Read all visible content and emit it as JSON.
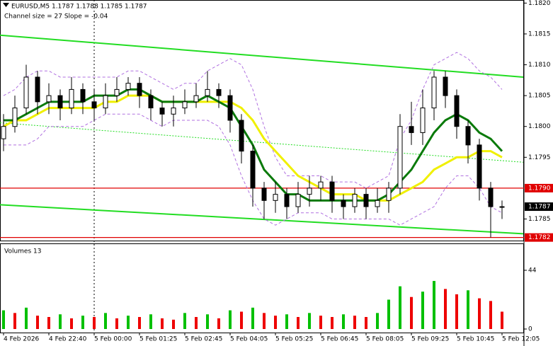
{
  "chart_data": {
    "type": "candlestick",
    "header": "EURUSD,M5  1.1787 1.1788 1.1785 1.1787",
    "subheader": "Channel size = 27 Slope = -0.04",
    "xlim": [
      -0.3125,
      45.875
    ],
    "ylim": [
      1.17815,
      1.18205
    ],
    "yticks": [
      {
        "value": 1.182,
        "label": "1.1820"
      },
      1.1815,
      {
        "value": 1.181,
        "label": "1.1810"
      },
      1.1805,
      {
        "value": 1.18,
        "label": "1.1800"
      },
      1.1795,
      1.1785
    ],
    "xticks": [
      {
        "value": 0,
        "label": "4 Feb 2026"
      },
      {
        "value": 4,
        "label": "4 Feb 22:40"
      },
      {
        "value": 8,
        "label": "5 Feb 00:00"
      },
      {
        "value": 12,
        "label": "5 Feb 01:25"
      },
      {
        "value": 16,
        "label": "5 Feb 02:45"
      },
      {
        "value": 20,
        "label": "5 Feb 04:05"
      },
      {
        "value": 24,
        "label": "5 Feb 05:25"
      },
      {
        "value": 28,
        "label": "5 Feb 06:45"
      },
      {
        "value": 32,
        "label": "5 Feb 08:05"
      },
      {
        "value": 36,
        "label": "5 Feb 09:25"
      },
      {
        "value": 40,
        "label": "5 Feb 10:45"
      },
      {
        "value": 44,
        "label": "5 Feb 12:05"
      }
    ],
    "open": [
      1.1798,
      1.18,
      1.1803,
      1.1808,
      1.1804,
      1.1805,
      1.1803,
      1.1806,
      1.1804,
      1.1803,
      1.1805,
      1.1806,
      1.1807,
      1.1805,
      1.1803,
      1.1802,
      1.1803,
      1.1804,
      1.1805,
      1.1806,
      1.1805,
      1.1801,
      1.1796,
      1.179,
      1.1788,
      1.1789,
      1.1787,
      1.1789,
      1.179,
      1.1791,
      1.1788,
      1.1787,
      1.1789,
      1.1787,
      1.1788,
      1.179,
      1.18,
      1.1799,
      1.1803,
      1.1808,
      1.1805,
      1.18,
      1.1797,
      1.179,
      1.1787
    ],
    "high": [
      1.1802,
      1.1805,
      1.181,
      1.1809,
      1.1807,
      1.1806,
      1.1808,
      1.1807,
      1.1806,
      1.1807,
      1.1808,
      1.1808,
      1.1808,
      1.1806,
      1.1804,
      1.1805,
      1.1806,
      1.1807,
      1.1809,
      1.1807,
      1.1806,
      1.1802,
      1.1797,
      1.1791,
      1.1791,
      1.179,
      1.1791,
      1.1792,
      1.1792,
      1.1792,
      1.1789,
      1.179,
      1.179,
      1.179,
      1.1791,
      1.1802,
      1.1804,
      1.1806,
      1.1809,
      1.1809,
      1.1806,
      1.1801,
      1.1798,
      1.1791,
      1.1788
    ],
    "low": [
      1.1796,
      1.1799,
      1.1802,
      1.1802,
      1.1802,
      1.1801,
      1.1802,
      1.1802,
      1.1801,
      1.1802,
      1.1804,
      1.1805,
      1.1803,
      1.1801,
      1.18,
      1.18,
      1.1802,
      1.1803,
      1.1804,
      1.1803,
      1.1799,
      1.1794,
      1.1787,
      1.1785,
      1.1786,
      1.1785,
      1.1786,
      1.1787,
      1.1788,
      1.1786,
      1.1785,
      1.1786,
      1.1785,
      1.1786,
      1.1786,
      1.1789,
      1.1797,
      1.1797,
      1.1801,
      1.1803,
      1.1798,
      1.1794,
      1.1788,
      1.1782,
      1.1785
    ],
    "close": [
      1.18,
      1.1803,
      1.1808,
      1.1804,
      1.1805,
      1.1803,
      1.1806,
      1.1804,
      1.1803,
      1.1805,
      1.1806,
      1.1807,
      1.1805,
      1.1803,
      1.1802,
      1.1803,
      1.1804,
      1.1805,
      1.1806,
      1.1805,
      1.1801,
      1.1796,
      1.179,
      1.1788,
      1.1789,
      1.1787,
      1.1789,
      1.179,
      1.1791,
      1.1788,
      1.1787,
      1.1789,
      1.1787,
      1.1788,
      1.179,
      1.18,
      1.1799,
      1.1803,
      1.1808,
      1.1805,
      1.18,
      1.1797,
      1.179,
      1.1787,
      1.1787
    ],
    "lines": [
      {
        "color": "#b070e0",
        "dashed": true,
        "values": [
          1.1805,
          1.1806,
          1.1808,
          1.1809,
          1.1809,
          1.1808,
          1.1808,
          1.1808,
          1.1808,
          1.1808,
          1.1808,
          1.1809,
          1.1809,
          1.1808,
          1.1807,
          1.1806,
          1.1807,
          1.1807,
          1.1809,
          1.181,
          1.1811,
          1.181,
          1.1806,
          1.18,
          1.1795,
          1.1792,
          1.1792,
          1.1792,
          1.1792,
          1.1791,
          1.1791,
          1.1791,
          1.179,
          1.1791,
          1.1792,
          1.1798,
          1.1801,
          1.1806,
          1.181,
          1.1811,
          1.1812,
          1.1811,
          1.1809,
          1.1808,
          1.1806
        ]
      },
      {
        "color": "#b070e0",
        "dashed": true,
        "values": [
          1.1797,
          1.1797,
          1.1797,
          1.1798,
          1.18,
          1.18,
          1.18,
          1.18,
          1.1801,
          1.1802,
          1.1802,
          1.1802,
          1.1802,
          1.1801,
          1.18,
          1.1801,
          1.1801,
          1.1801,
          1.1801,
          1.18,
          1.1797,
          1.1792,
          1.1788,
          1.1785,
          1.1784,
          1.1785,
          1.1786,
          1.1786,
          1.1786,
          1.1785,
          1.1785,
          1.1785,
          1.1785,
          1.1785,
          1.1785,
          1.1784,
          1.1785,
          1.1786,
          1.1787,
          1.179,
          1.1792,
          1.1792,
          1.179,
          1.1787,
          1.1786
        ]
      },
      {
        "color": "#f0f000",
        "dashed": false,
        "values": [
          1.18,
          1.1801,
          1.1801,
          1.1802,
          1.1803,
          1.1803,
          1.1803,
          1.1803,
          1.1803,
          1.1804,
          1.1804,
          1.1805,
          1.1805,
          1.1805,
          1.1804,
          1.1804,
          1.1804,
          1.1804,
          1.1804,
          1.1804,
          1.1804,
          1.1803,
          1.1801,
          1.1798,
          1.1796,
          1.1794,
          1.1792,
          1.1791,
          1.179,
          1.1789,
          1.1789,
          1.1789,
          1.1788,
          1.1788,
          1.1788,
          1.1789,
          1.179,
          1.1791,
          1.1793,
          1.1794,
          1.1795,
          1.1795,
          1.1796,
          1.1796,
          1.1795
        ]
      },
      {
        "color": "#0a7a0a",
        "dashed": false,
        "values": [
          1.1801,
          1.1801,
          1.1802,
          1.1803,
          1.1804,
          1.1804,
          1.1804,
          1.1804,
          1.1805,
          1.1805,
          1.1805,
          1.1806,
          1.1806,
          1.1805,
          1.1804,
          1.1804,
          1.1804,
          1.1804,
          1.1805,
          1.1804,
          1.1803,
          1.18,
          1.1797,
          1.1793,
          1.1791,
          1.1789,
          1.1789,
          1.1788,
          1.1788,
          1.1788,
          1.1788,
          1.1788,
          1.1788,
          1.1788,
          1.1789,
          1.1791,
          1.1793,
          1.1796,
          1.1799,
          1.1801,
          1.1802,
          1.1801,
          1.1799,
          1.1798,
          1.1796
        ]
      }
    ],
    "trendlines": [
      {
        "color": "#22dd22",
        "dashed": false,
        "x": [
          -0.3125,
          45.875
        ],
        "values": [
          1.18148,
          1.1808
        ]
      },
      {
        "color": "#22dd22",
        "dashed": true,
        "x": [
          -0.3125,
          45.875
        ],
        "values": [
          1.18006,
          1.17942
        ]
      },
      {
        "color": "#22dd22",
        "dashed": false,
        "x": [
          -0.3125,
          45.875
        ],
        "values": [
          1.17873,
          1.17826
        ]
      }
    ],
    "levels": [
      {
        "value": 1.179,
        "label": "1.1790",
        "color": "#e00000"
      },
      {
        "value": 1.1782,
        "label": "1.1782",
        "color": "#e00000"
      }
    ],
    "last_price": 1.1787,
    "volume": {
      "title": "Volumes 13",
      "ylim": [
        0,
        44
      ],
      "yticks": [
        44,
        0
      ],
      "up_color": "#00c000",
      "down_color": "#ee0000",
      "values": [
        14,
        12,
        16,
        10,
        9,
        11,
        8,
        10,
        9,
        12,
        8,
        10,
        9,
        11,
        8,
        7,
        12,
        9,
        11,
        8,
        14,
        13,
        16,
        12,
        10,
        11,
        9,
        12,
        10,
        9,
        11,
        10,
        9,
        12,
        22,
        32,
        24,
        28,
        36,
        30,
        26,
        29,
        23,
        21,
        13
      ]
    }
  }
}
